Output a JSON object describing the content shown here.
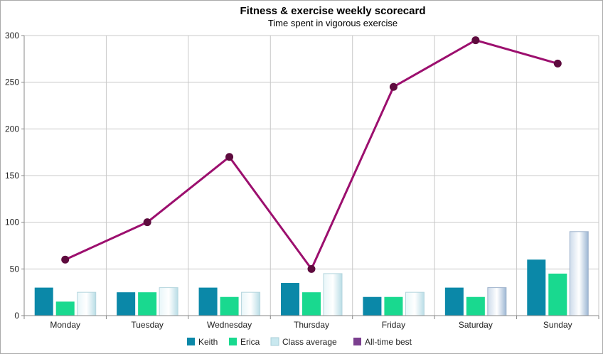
{
  "chart_data": {
    "type": "bar",
    "title": "Fitness & exercise weekly scorecard",
    "subtitle": "Time spent in vigorous exercise",
    "categories": [
      "Monday",
      "Tuesday",
      "Wednesday",
      "Thursday",
      "Friday",
      "Saturday",
      "Sunday"
    ],
    "y_ticks": [
      "0",
      "50",
      "100",
      "150",
      "200",
      "250",
      "300"
    ],
    "ylim": [
      0,
      300
    ],
    "grid": true,
    "legend_position": "bottom",
    "series": [
      {
        "name": "Keith",
        "kind": "bar",
        "color": "#0b88a8",
        "values": [
          30,
          25,
          30,
          35,
          20,
          30,
          60
        ]
      },
      {
        "name": "Erica",
        "kind": "bar",
        "color": "#19d98f",
        "values": [
          15,
          25,
          20,
          25,
          20,
          20,
          45
        ]
      },
      {
        "name": "Class average",
        "kind": "bar",
        "color": "#c9e8ef",
        "values": [
          25,
          30,
          25,
          45,
          25,
          30,
          90
        ]
      },
      {
        "name": "All-time best",
        "kind": "line",
        "color": "#9c0f6e",
        "marker_color": "#5e0b3e",
        "legend_color": "#7b3f8f",
        "values": [
          60,
          100,
          170,
          50,
          245,
          295,
          270
        ]
      }
    ]
  }
}
